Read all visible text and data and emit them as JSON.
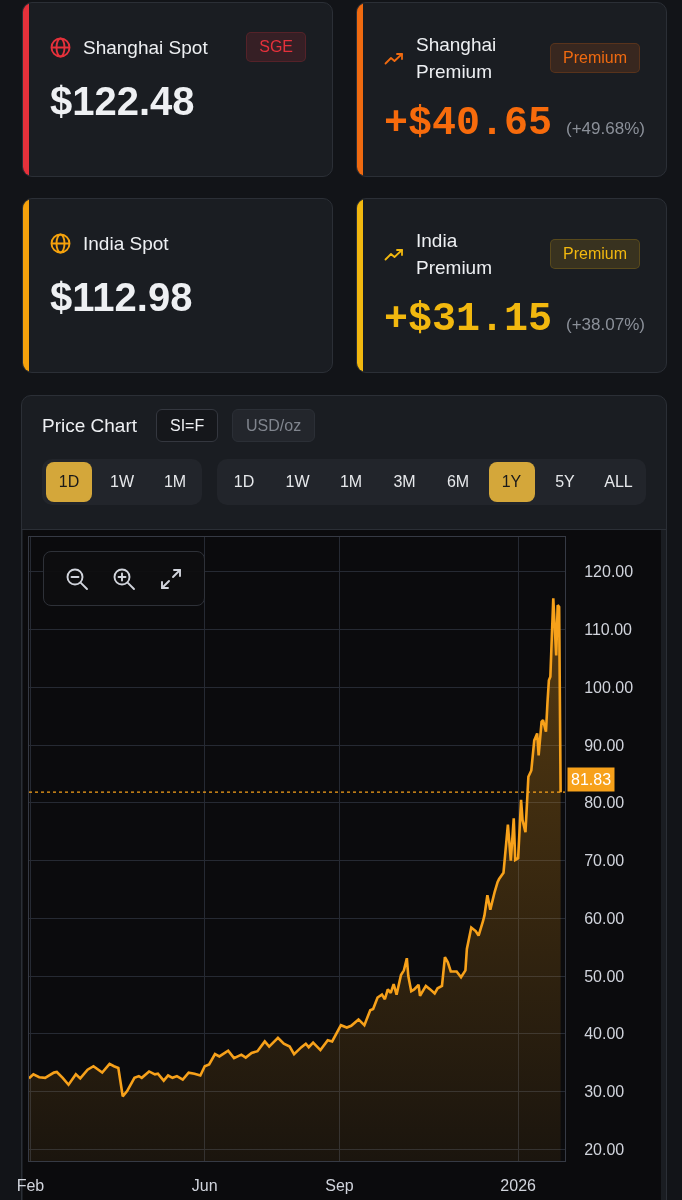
{
  "chart_data": [
    {
      "type": "other",
      "title": "Shanghai Spot",
      "subtitle": "$122.48",
      "annotations": [
        "SGE"
      ],
      "colors": [
        "#e5313b",
        "#eef0f3"
      ]
    },
    {
      "type": "other",
      "title": "Shanghai Premium",
      "subtitle": "+$40.65",
      "annotations": [
        "Premium",
        "(+49.68%)"
      ],
      "colors": [
        "#f06a10",
        "#f76b0c"
      ]
    },
    {
      "type": "other",
      "title": "India Spot",
      "subtitle": "$112.98",
      "colors": [
        "#f5a20c",
        "#eef0f3"
      ]
    },
    {
      "type": "other",
      "title": "India Premium",
      "subtitle": "+$31.15",
      "annotations": [
        "Premium",
        "(+38.07%)"
      ],
      "colors": [
        "#f2b80f",
        "#f2b80f"
      ]
    },
    {
      "type": "area",
      "title": "Price Chart",
      "annotations": [
        "SI=F",
        "USD/oz",
        "1D",
        "1W",
        "1M",
        "1D",
        "1W",
        "1M",
        "3M",
        "6M",
        "1Y",
        "5Y",
        "ALL"
      ],
      "x": [
        "2025-02-02",
        "2025-02-05",
        "2025-02-09",
        "2025-02-13",
        "2025-02-19",
        "2025-02-21",
        "2025-02-25",
        "2025-03-01",
        "2025-03-06",
        "2025-03-09",
        "2025-03-14",
        "2025-03-18",
        "2025-03-24",
        "2025-03-29",
        "2025-04-01",
        "2025-04-04",
        "2025-04-07",
        "2025-04-10",
        "2025-04-15",
        "2025-04-18",
        "2025-04-20",
        "2025-04-25",
        "2025-04-29",
        "2025-05-01",
        "2025-05-05",
        "2025-05-08",
        "2025-05-11",
        "2025-05-14",
        "2025-05-18",
        "2025-05-22",
        "2025-05-26",
        "2025-05-30",
        "2025-06-02",
        "2025-06-05",
        "2025-06-09",
        "2025-06-12",
        "2025-06-18",
        "2025-06-22",
        "2025-06-27",
        "2025-06-30",
        "2025-07-04",
        "2025-07-08",
        "2025-07-13",
        "2025-07-16",
        "2025-07-22",
        "2025-07-26",
        "2025-07-30",
        "2025-08-02",
        "2025-08-07",
        "2025-08-10",
        "2025-08-12",
        "2025-08-15",
        "2025-08-20",
        "2025-08-25",
        "2025-08-28",
        "2025-09-03",
        "2025-09-07",
        "2025-09-10",
        "2025-09-15",
        "2025-09-19",
        "2025-09-23",
        "2025-09-25",
        "2025-09-28",
        "2025-10-01",
        "2025-10-03",
        "2025-10-05",
        "2025-10-07",
        "2025-10-09",
        "2025-10-11",
        "2025-10-14",
        "2025-10-16",
        "2025-10-18",
        "2025-10-19",
        "2025-10-21",
        "2025-10-23",
        "2025-10-26",
        "2025-10-27",
        "2025-10-31",
        "2025-11-03",
        "2025-11-06",
        "2025-11-08",
        "2025-11-11",
        "2025-11-13",
        "2025-11-15",
        "2025-11-17",
        "2025-11-21",
        "2025-11-24",
        "2025-11-27",
        "2025-11-28",
        "2025-12-01",
        "2025-12-04",
        "2025-12-06",
        "2025-12-09",
        "2025-12-10",
        "2025-12-12",
        "2025-12-14",
        "2025-12-17",
        "2025-12-19",
        "2025-12-20",
        "2025-12-23",
        "2025-12-24",
        "2025-12-26",
        "2025-12-28",
        "2025-12-30",
        "2025-12-31",
        "2026-01-02",
        "2026-01-04",
        "2026-01-05",
        "2026-01-07",
        "2026-01-09",
        "2026-01-11",
        "2026-01-13",
        "2026-01-15",
        "2026-01-16",
        "2026-01-18",
        "2026-01-19",
        "2026-01-21",
        "2026-01-22",
        "2026-01-23",
        "2026-01-24",
        "2026-01-25",
        "2026-01-26",
        "2026-01-28",
        "2026-01-29",
        "2026-01-30",
        "2026-01-31"
      ],
      "series": [
        {
          "color": "#f7a11a",
          "values": [
            32.3,
            33.0,
            32.5,
            32.4,
            33.3,
            33.4,
            32.4,
            31.2,
            33.0,
            32.3,
            33.8,
            34.4,
            33.3,
            34.8,
            34.4,
            34.1,
            29.2,
            30.1,
            32.4,
            32.7,
            32.4,
            33.5,
            33.0,
            33.1,
            31.9,
            32.8,
            32.4,
            32.7,
            32.1,
            33.3,
            33.1,
            32.8,
            34.4,
            34.7,
            36.5,
            36.1,
            37.1,
            35.8,
            36.4,
            35.9,
            36.7,
            37.0,
            38.7,
            37.8,
            39.3,
            38.3,
            37.8,
            36.5,
            37.7,
            38.3,
            37.7,
            38.5,
            37.2,
            38.9,
            38.7,
            41.5,
            41.1,
            41.4,
            42.5,
            41.5,
            44.1,
            44.3,
            46.3,
            46.8,
            46.0,
            47.7,
            47.1,
            48.6,
            46.8,
            50.2,
            51.0,
            53.1,
            50.0,
            47.4,
            47.7,
            48.5,
            46.6,
            48.3,
            47.7,
            47.0,
            47.9,
            48.3,
            53.3,
            52.4,
            50.8,
            50.8,
            49.8,
            51.0,
            54.7,
            58.4,
            57.8,
            57.0,
            59.5,
            60.5,
            64.0,
            61.5,
            64.6,
            66.3,
            66.8,
            67.9,
            70.7,
            76.2,
            70.0,
            77.3,
            70.1,
            70.4,
            80.5,
            77.0,
            74.9,
            84.5,
            85.6,
            90.8,
            92.0,
            88.2,
            94.0,
            94.3,
            92.3,
            97.2,
            101.2,
            101.8,
            108.7,
            115.4,
            105.5,
            114.2,
            113.9,
            81.8
          ]
        }
      ],
      "xlim": [
        "2025-02-02",
        "2026-02-03"
      ],
      "xticks": [
        {
          "value": "2025-02-03",
          "label": "Feb"
        },
        {
          "value": "2025-06-02",
          "label": "Jun"
        },
        {
          "value": "2025-09-02",
          "label": "Sep"
        },
        {
          "value": "2026-01-02",
          "label": "2026"
        }
      ],
      "ylim": [
        18,
        126
      ],
      "yticks": [
        {
          "value": 20,
          "label": "20.00"
        },
        {
          "value": 30,
          "label": "30.00"
        },
        {
          "value": 40,
          "label": "40.00"
        },
        {
          "value": 50,
          "label": "50.00"
        },
        {
          "value": 60,
          "label": "60.00"
        },
        {
          "value": 70,
          "label": "70.00"
        },
        {
          "value": 80,
          "label": "80.00"
        },
        {
          "value": 90,
          "label": "90.00"
        },
        {
          "value": 100,
          "label": "100.00"
        },
        {
          "value": 110,
          "label": "110.00"
        },
        {
          "value": 120,
          "label": "120.00"
        }
      ],
      "grid": true,
      "ref_lines": [
        {
          "axis": "y",
          "value": 81.83,
          "label": "81.83",
          "color": "#f7a11a",
          "line_style": "dotted"
        }
      ]
    }
  ]
}
